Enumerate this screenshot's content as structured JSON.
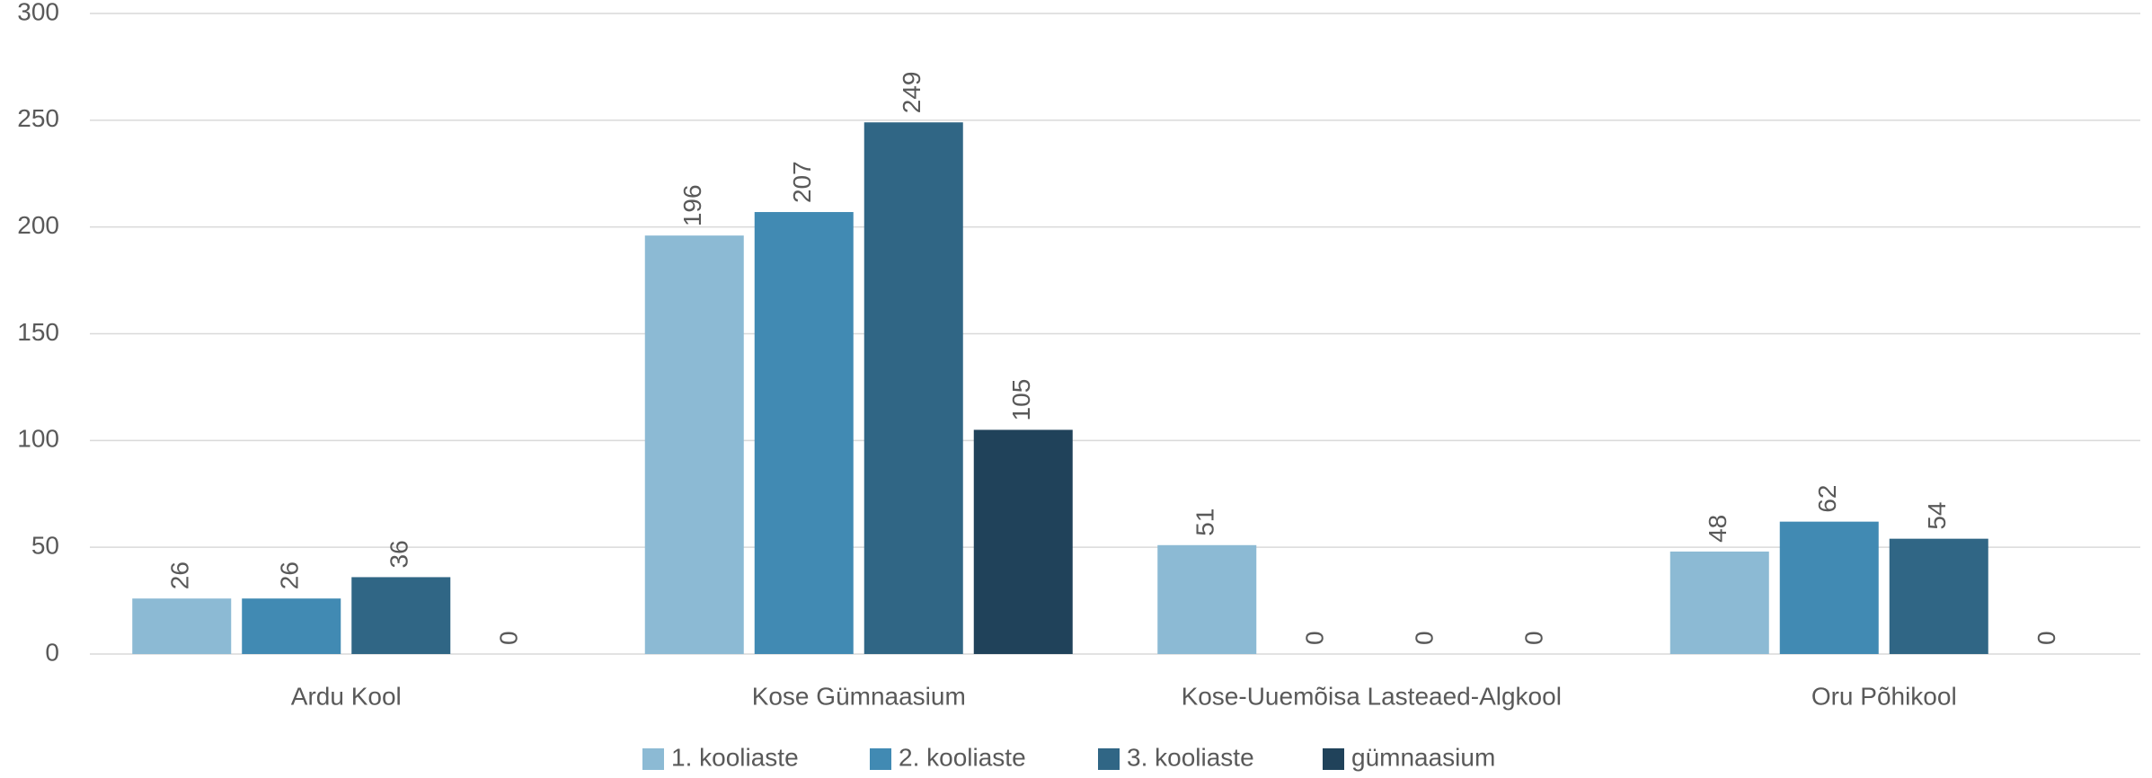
{
  "chart_data": {
    "type": "bar",
    "categories": [
      "Ardu Kool",
      "Kose Gümnaasium",
      "Kose-Uuemõisa Lasteaed-Algkool",
      "Oru Põhikool"
    ],
    "series": [
      {
        "name": "1. kooliaste",
        "color": "#8cbad4",
        "values": [
          26,
          196,
          51,
          48
        ]
      },
      {
        "name": "2. kooliaste",
        "color": "#418ab3",
        "values": [
          26,
          207,
          0,
          62
        ]
      },
      {
        "name": "3. kooliaste",
        "color": "#306685",
        "values": [
          36,
          249,
          0,
          54
        ]
      },
      {
        "name": "gümnaasium",
        "color": "#20425a",
        "values": [
          0,
          105,
          0,
          0
        ]
      }
    ],
    "ylim": [
      0,
      300
    ],
    "yticks": [
      0,
      50,
      100,
      150,
      200,
      250,
      300
    ],
    "grid": true,
    "legend": "bottom"
  }
}
